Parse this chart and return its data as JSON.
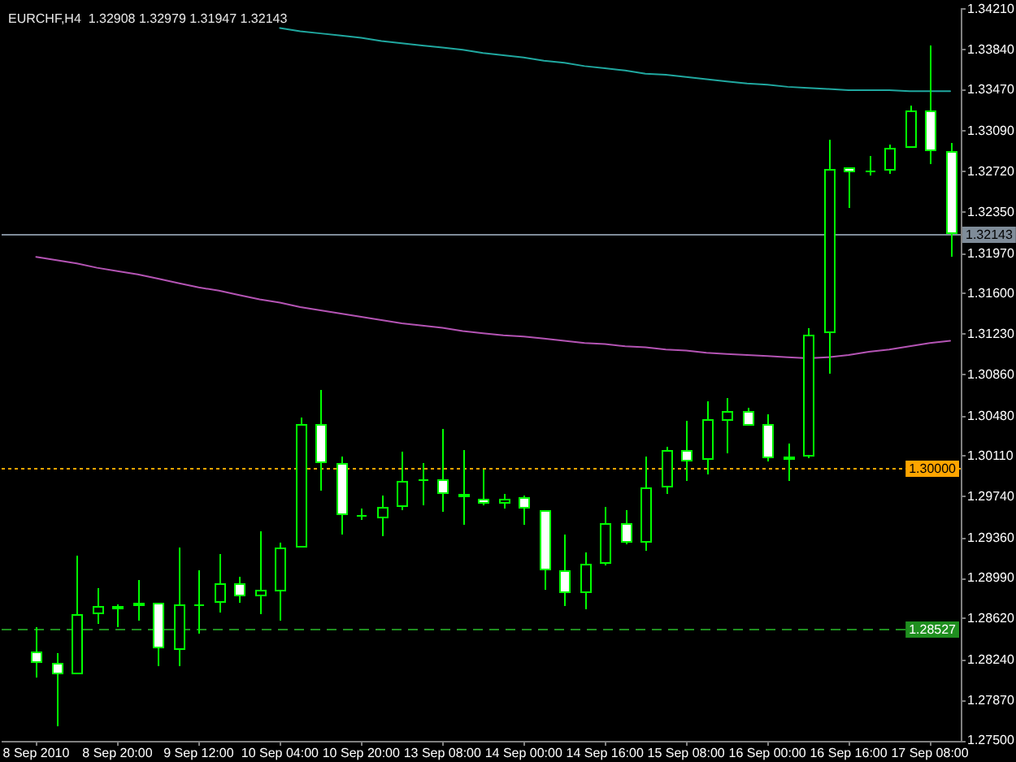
{
  "chart_data": {
    "type": "candlestick",
    "title": "EURCHF,H4  1.32908 1.32979 1.31947 1.32143",
    "categories": [
      "8 Sep 2010",
      null,
      null,
      null,
      "8 Sep 20:00",
      null,
      null,
      null,
      "9 Sep 12:00",
      null,
      null,
      null,
      "10 Sep 04:00",
      null,
      null,
      null,
      "10 Sep 20:00",
      null,
      null,
      null,
      "13 Sep 08:00",
      null,
      null,
      null,
      "14 Sep 00:00",
      null,
      null,
      null,
      "14 Sep 16:00",
      null,
      null,
      null,
      "15 Sep 08:00",
      null,
      null,
      null,
      "16 Sep 00:00",
      null,
      null,
      null,
      "16 Sep 16:00",
      null,
      null,
      null,
      "17 Sep 08:00",
      null
    ],
    "ohlc": [
      [
        1.2832,
        1.2855,
        1.2808,
        1.2822
      ],
      [
        1.2821,
        1.2831,
        1.2763,
        1.2811
      ],
      [
        1.2811,
        1.292,
        1.2811,
        1.2866
      ],
      [
        1.2866,
        1.289,
        1.2858,
        1.2874
      ],
      [
        1.2874,
        1.2875,
        1.2855,
        1.2871
      ],
      [
        1.2873,
        1.2898,
        1.2861,
        1.2876
      ],
      [
        1.2876,
        1.2876,
        1.2819,
        1.2834
      ],
      [
        1.2834,
        1.2927,
        1.2818,
        1.2875
      ],
      [
        1.2875,
        1.2906,
        1.2849,
        1.2875
      ],
      [
        1.2876,
        1.2922,
        1.2868,
        1.2894
      ],
      [
        1.2894,
        1.29,
        1.2876,
        1.2882
      ],
      [
        1.2882,
        1.2943,
        1.2867,
        1.2888
      ],
      [
        1.2888,
        1.2932,
        1.2861,
        1.2928
      ],
      [
        1.2927,
        1.3047,
        1.2927,
        1.304
      ],
      [
        1.3041,
        1.3072,
        1.2979,
        1.3005
      ],
      [
        1.3005,
        1.3011,
        1.2939,
        1.2957
      ],
      [
        1.2957,
        1.2963,
        1.2952,
        1.2957
      ],
      [
        1.2955,
        1.2975,
        1.2938,
        1.2965
      ],
      [
        1.2965,
        1.3015,
        1.2962,
        1.2989
      ],
      [
        1.2989,
        1.3005,
        1.2966,
        1.299
      ],
      [
        1.299,
        1.3036,
        1.296,
        1.2976
      ],
      [
        1.2976,
        1.3017,
        1.2948,
        1.2973
      ],
      [
        1.2972,
        1.2999,
        1.2966,
        1.2968
      ],
      [
        1.2968,
        1.2976,
        1.2963,
        1.2972
      ],
      [
        1.2973,
        1.2975,
        1.2948,
        1.2962
      ],
      [
        1.2962,
        1.2962,
        1.2889,
        1.2907
      ],
      [
        1.2907,
        1.2939,
        1.2873,
        1.2886
      ],
      [
        1.2886,
        1.2923,
        1.2871,
        1.2913
      ],
      [
        1.2912,
        1.2964,
        1.2911,
        1.2949
      ],
      [
        1.2949,
        1.2961,
        1.293,
        1.2931
      ],
      [
        1.2931,
        1.3011,
        1.2924,
        1.2982
      ],
      [
        1.2982,
        1.302,
        1.2977,
        1.3017
      ],
      [
        1.3017,
        1.3043,
        1.2989,
        1.3006
      ],
      [
        1.3007,
        1.3061,
        1.2994,
        1.3045
      ],
      [
        1.3044,
        1.3064,
        1.3014,
        1.3053
      ],
      [
        1.3053,
        1.3056,
        1.304,
        1.304
      ],
      [
        1.304,
        1.3049,
        1.3007,
        1.3008
      ],
      [
        1.3008,
        1.3023,
        1.2988,
        1.3011
      ],
      [
        1.3011,
        1.3129,
        1.301,
        1.3123
      ],
      [
        1.3124,
        1.3301,
        1.3087,
        1.3275
      ],
      [
        1.3276,
        1.3276,
        1.3239,
        1.3271
      ],
      [
        1.3272,
        1.3286,
        1.3268,
        1.3273
      ],
      [
        1.3273,
        1.3297,
        1.327,
        1.3294
      ],
      [
        1.3294,
        1.3333,
        1.3294,
        1.3328
      ],
      [
        1.3328,
        1.3388,
        1.3279,
        1.329
      ],
      [
        1.32908,
        1.32979,
        1.31947,
        1.32143
      ]
    ],
    "color": "#00ff00",
    "colors": [
      "#ffffff",
      "#ffffff",
      "#000000",
      "#000000",
      "#ffffff",
      "#000000",
      "#ffffff",
      "#000000",
      "#000000",
      "#000000",
      "#ffffff",
      "#000000",
      "#000000",
      "#000000",
      "#ffffff",
      "#ffffff",
      "#000000",
      "#000000",
      "#000000",
      "#000000",
      "#ffffff",
      "#ffffff",
      "#ffffff",
      "#000000",
      "#ffffff",
      "#ffffff",
      "#ffffff",
      "#000000",
      "#000000",
      "#ffffff",
      "#000000",
      "#000000",
      "#ffffff",
      "#000000",
      "#000000",
      "#ffffff",
      "#ffffff",
      "#000000",
      "#000000",
      "#000000",
      "#ffffff",
      "#000000",
      "#000000",
      "#000000",
      "#ffffff",
      "#ffffff"
    ],
    "series": [
      {
        "type": "line",
        "color": "#20a8a0",
        "values": [
          null,
          null,
          null,
          null,
          null,
          null,
          null,
          null,
          null,
          null,
          null,
          null,
          1.3404,
          1.3401,
          1.3399,
          1.3397,
          1.3395,
          1.3392,
          1.339,
          1.3388,
          1.3386,
          1.3384,
          1.3381,
          1.3379,
          1.3377,
          1.3374,
          1.3372,
          1.3369,
          1.3367,
          1.3365,
          1.3362,
          1.3361,
          1.3359,
          1.3357,
          1.3355,
          1.3353,
          1.3352,
          1.335,
          1.3349,
          1.3348,
          1.3347,
          1.3347,
          1.3347,
          1.3346,
          1.3346,
          1.3346
        ]
      },
      {
        "type": "line",
        "color": "#b454b4",
        "values": [
          1.3194,
          1.3191,
          1.3188,
          1.3184,
          1.3181,
          1.3178,
          1.3174,
          1.317,
          1.3166,
          1.3163,
          1.3159,
          1.3155,
          1.3152,
          1.3148,
          1.3145,
          1.3142,
          1.3139,
          1.3136,
          1.3133,
          1.3131,
          1.3129,
          1.3126,
          1.3124,
          1.3122,
          1.3121,
          1.3119,
          1.3117,
          1.3115,
          1.3114,
          1.3112,
          1.3111,
          1.3109,
          1.3108,
          1.3106,
          1.3105,
          1.3104,
          1.3103,
          1.3102,
          1.3101,
          1.3102,
          1.3104,
          1.3107,
          1.3109,
          1.3112,
          1.3115,
          1.3117
        ]
      }
    ],
    "ylim": [
      1.275,
      1.3421
    ],
    "yticks": [
      {
        "value": 1.3421,
        "label": "1.34210"
      },
      {
        "value": 1.3384,
        "label": "1.33840"
      },
      {
        "value": 1.3347,
        "label": "1.33470"
      },
      {
        "value": 1.3309,
        "label": "1.33090"
      },
      {
        "value": 1.3272,
        "label": "1.32720"
      },
      {
        "value": 1.3235,
        "label": "1.32350"
      },
      {
        "value": 1.3197,
        "label": "1.31970"
      },
      {
        "value": 1.316,
        "label": "1.31600"
      },
      {
        "value": 1.3123,
        "label": "1.31230"
      },
      {
        "value": 1.3086,
        "label": "1.30860"
      },
      {
        "value": 1.3048,
        "label": "1.30480"
      },
      {
        "value": 1.3011,
        "label": "1.30110"
      },
      {
        "value": 1.2974,
        "label": "1.29740"
      },
      {
        "value": 1.2936,
        "label": "1.29360"
      },
      {
        "value": 1.2899,
        "label": "1.28990"
      },
      {
        "value": 1.2862,
        "label": "1.28620"
      },
      {
        "value": 1.2824,
        "label": "1.28240"
      },
      {
        "value": 1.2787,
        "label": "1.27870"
      },
      {
        "value": 1.275,
        "label": "1.27500"
      }
    ],
    "ref_lines": [
      {
        "axis": "y",
        "value": 1.32143,
        "label": "1.32143",
        "color": "#7f8c99"
      },
      {
        "axis": "y",
        "value": 1.3,
        "label": "1.30000",
        "color": "#ffa500",
        "line_style": "dotted"
      },
      {
        "axis": "y",
        "value": 1.28527,
        "label": "1.28527",
        "color": "#1f8f1f",
        "line_style": "dashed"
      }
    ]
  }
}
